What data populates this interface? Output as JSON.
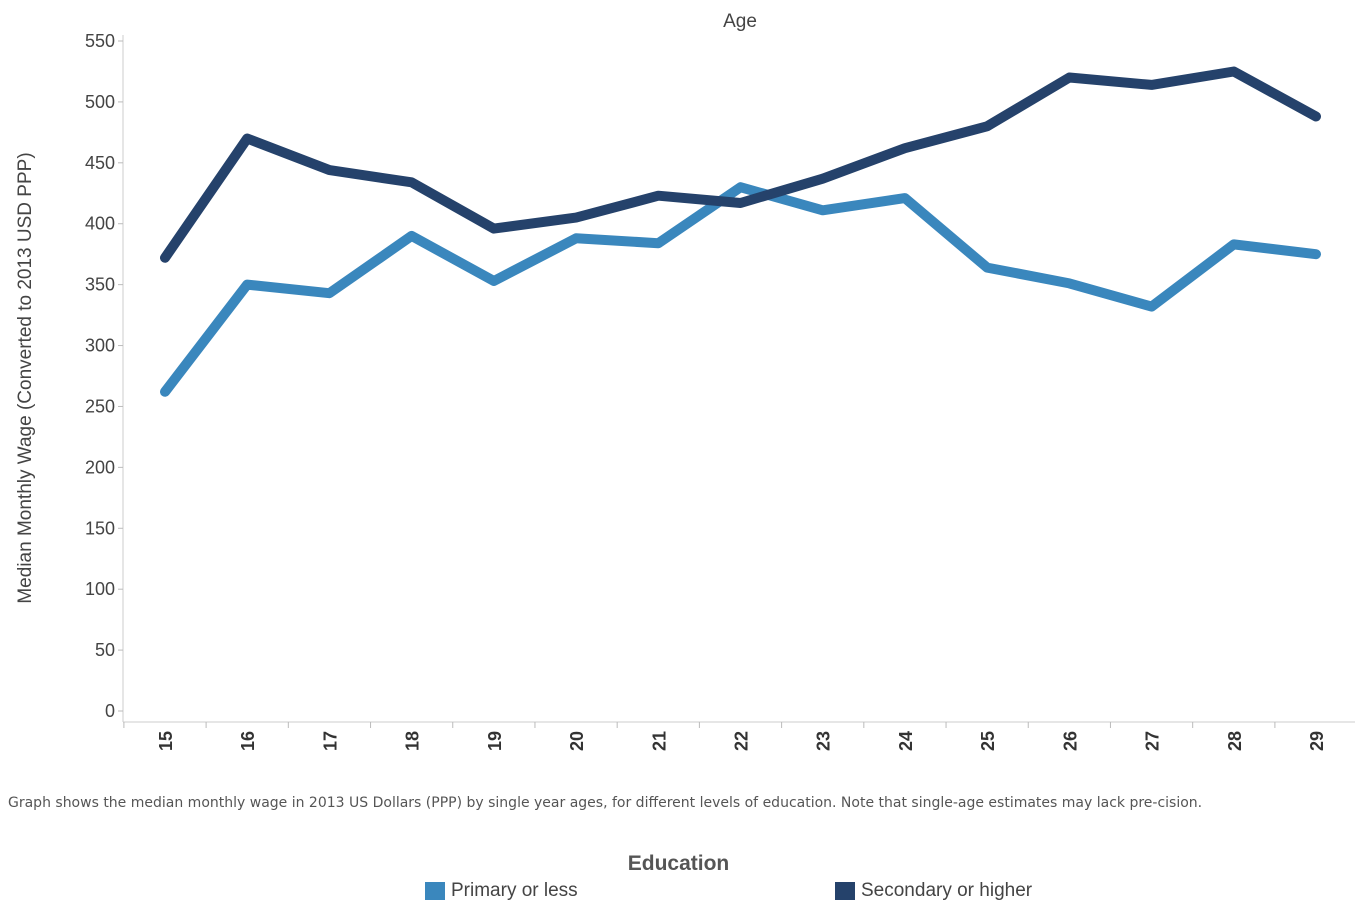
{
  "chart_data": {
    "type": "line",
    "title": "Age",
    "ylabel": "Median Monthly Wage (Converted to 2013 USD PPP)",
    "xlabel": "",
    "categories": [
      "15",
      "16",
      "17",
      "18",
      "19",
      "20",
      "21",
      "22",
      "23",
      "24",
      "25",
      "26",
      "27",
      "28",
      "29"
    ],
    "ylim": [
      0,
      550
    ],
    "yticks": [
      0,
      50,
      100,
      150,
      200,
      250,
      300,
      350,
      400,
      450,
      500,
      550
    ],
    "grid": false,
    "legend": {
      "title": "Education",
      "position": "bottom"
    },
    "series": [
      {
        "name": "Primary or less",
        "color": "#3a87bd",
        "values": [
          262,
          350,
          343,
          390,
          353,
          388,
          384,
          430,
          411,
          421,
          364,
          351,
          332,
          383,
          375
        ]
      },
      {
        "name": "Secondary or higher",
        "color": "#25426b",
        "values": [
          372,
          470,
          444,
          434,
          396,
          405,
          423,
          417,
          437,
          462,
          480,
          520,
          514,
          525,
          488
        ]
      }
    ]
  },
  "caption": "Graph shows the median monthly wage in 2013 US Dollars (PPP) by single year ages, for different levels of education. Note that single-age estimates may lack pre-cision."
}
